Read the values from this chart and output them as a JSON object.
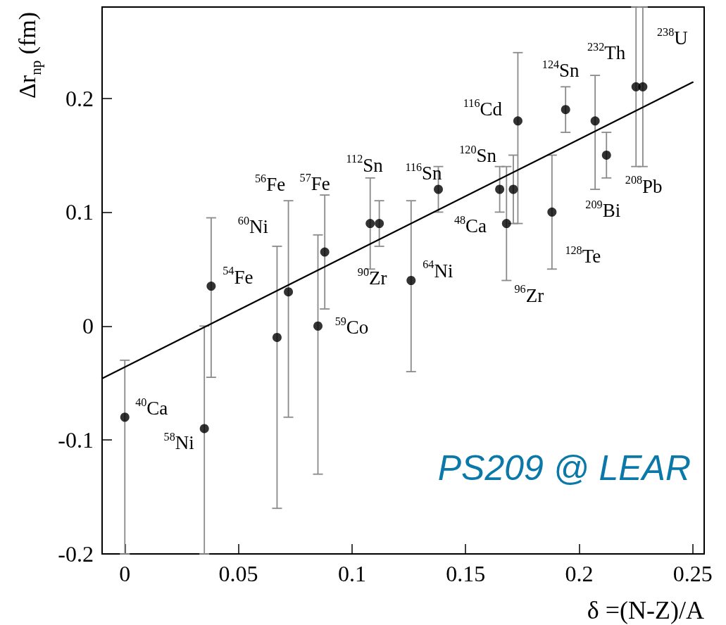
{
  "chart_data": {
    "type": "scatter",
    "xlabel": "δ =(N-Z)/A",
    "ylabel": "Δr$_{np}$ (fm)",
    "xlim": [
      -0.01,
      0.255
    ],
    "xticks": [
      0,
      0.05,
      0.1,
      0.15,
      0.2,
      0.25
    ],
    "ylim": [
      -0.2,
      0.28
    ],
    "yticks": [
      -0.2,
      -0.1,
      0,
      0.1,
      0.2
    ],
    "grid": false,
    "series": [
      {
        "color": "#000000",
        "marker": "circle",
        "x": [
          0,
          0.035,
          0.038,
          0.067,
          0.072,
          0.085,
          0.088,
          0.108,
          0.112,
          0.126,
          0.138,
          0.165,
          0.168,
          0.171,
          0.173,
          0.188,
          0.194,
          0.207,
          0.212,
          0.225,
          0.228
        ],
        "values": [
          -0.08,
          -0.09,
          0.035,
          -0.01,
          0.03,
          0.0,
          0.065,
          0.09,
          0.09,
          0.04,
          0.12,
          0.12,
          0.09,
          0.12,
          0.18,
          0.1,
          0.19,
          0.18,
          0.15,
          0.21,
          0.21
        ],
        "errors": [
          [
            -0.2,
            -0.03
          ],
          [
            -0.2,
            0.0
          ],
          [
            -0.045,
            0.095
          ],
          [
            -0.16,
            0.07
          ],
          [
            -0.08,
            0.11
          ],
          [
            -0.13,
            0.08
          ],
          [
            0.015,
            0.115
          ],
          [
            0.05,
            0.13
          ],
          [
            0.07,
            0.11
          ],
          [
            -0.04,
            0.11
          ],
          [
            0.1,
            0.14
          ],
          [
            0.1,
            0.14
          ],
          [
            0.04,
            0.14
          ],
          [
            0.09,
            0.15
          ],
          [
            0.09,
            0.24
          ],
          [
            0.05,
            0.15
          ],
          [
            0.17,
            0.21
          ],
          [
            0.12,
            0.22
          ],
          [
            0.13,
            0.17
          ],
          [
            0.14,
            0.28
          ],
          [
            0.14,
            0.28
          ]
        ]
      },
      {
        "type": "line",
        "color": "#000000",
        "marker": "none",
        "line_style": "solid",
        "x": [
          -0.01,
          0.25
        ],
        "values": [
          -0.046,
          0.214
        ]
      }
    ],
    "annotations": [
      {
        "text": "$^{40}$Ca",
        "x": 0,
        "y": -0.08
      },
      {
        "text": "$^{58}$Ni",
        "x": 0.035,
        "y": -0.09
      },
      {
        "text": "$^{54}$Fe",
        "x": 0.038,
        "y": 0.035
      },
      {
        "text": "$^{60}$Ni",
        "x": 0.067,
        "y": 0.07
      },
      {
        "text": "$^{56}$Fe",
        "x": 0.072,
        "y": 0.11
      },
      {
        "text": "$^{59}$Co",
        "x": 0.085,
        "y": 0.0
      },
      {
        "text": "$^{57}$Fe",
        "x": 0.088,
        "y": 0.115
      },
      {
        "text": "$^{112}$Sn",
        "x": 0.108,
        "y": 0.09
      },
      {
        "text": "$^{90}$Zr",
        "x": 0.112,
        "y": 0.07
      },
      {
        "text": "$^{64}$Ni",
        "x": 0.126,
        "y": 0.04
      },
      {
        "text": "$^{116}$Sn",
        "x": 0.138,
        "y": 0.12
      },
      {
        "text": "$^{120}$Sn",
        "x": 0.165,
        "y": 0.12
      },
      {
        "text": "$^{96}$Zr",
        "x": 0.168,
        "y": 0.04
      },
      {
        "text": "$^{48}$Ca",
        "x": 0.171,
        "y": 0.12
      },
      {
        "text": "$^{116}$Cd",
        "x": 0.173,
        "y": 0.18
      },
      {
        "text": "$^{128}$Te",
        "x": 0.188,
        "y": 0.1
      },
      {
        "text": "$^{124}$Sn",
        "x": 0.194,
        "y": 0.19
      },
      {
        "text": "$^{232}$Th",
        "x": 0.207,
        "y": 0.22
      },
      {
        "text": "$^{209}$Bi",
        "x": 0.212,
        "y": 0.15
      },
      {
        "text": "$^{208}$Pb",
        "x": 0.225,
        "y": 0.14
      },
      {
        "text": "$^{238}$U",
        "x": 0.228,
        "y": 0.21
      },
      "PS209 @ LEAR"
    ]
  }
}
